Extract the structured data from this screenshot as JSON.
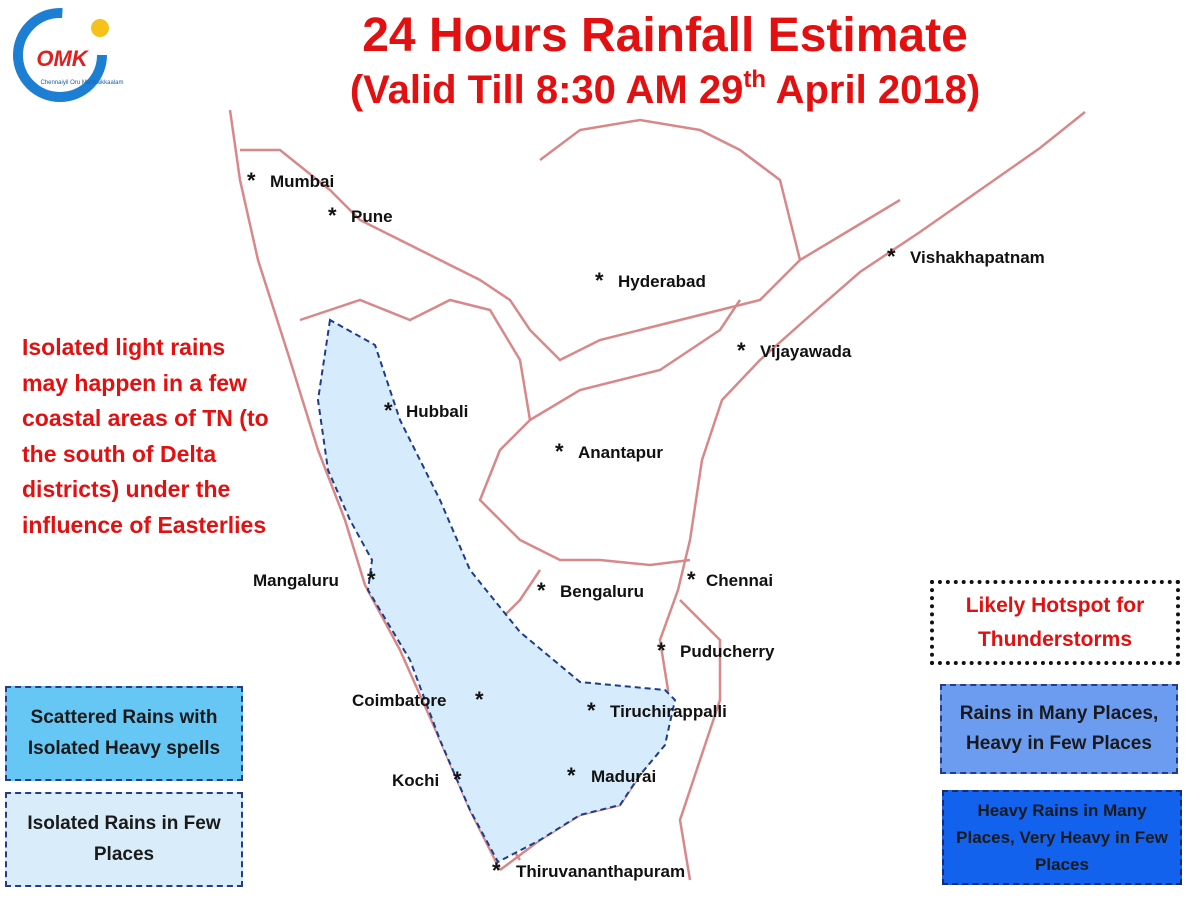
{
  "logo": {
    "text": "OMK",
    "caption": "Chennaiyil Oru Mazhaikkaalam"
  },
  "title": "24 Hours Rainfall Estimate",
  "subtitle": {
    "prefix": "(Valid Till 8:30 AM 29",
    "superscript": "th",
    "suffix": " April 2018)"
  },
  "note": "Isolated light rains may happen in a few coastal areas of TN (to the south of Delta districts) under the influence of Easterlies",
  "city_marker": "*",
  "cities": [
    {
      "label": "Mumbai"
    },
    {
      "label": "Pune"
    },
    {
      "label": "Hyderabad"
    },
    {
      "label": "Vishakhapatnam"
    },
    {
      "label": "Vijayawada"
    },
    {
      "label": "Hubbali"
    },
    {
      "label": "Anantapur"
    },
    {
      "label": "Mangaluru"
    },
    {
      "label": "Bengaluru"
    },
    {
      "label": "Chennai"
    },
    {
      "label": "Puducherry"
    },
    {
      "label": "Coimbatore"
    },
    {
      "label": "Tiruchirappalli"
    },
    {
      "label": "Kochi"
    },
    {
      "label": "Madurai"
    },
    {
      "label": "Thiruvananthapuram"
    }
  ],
  "legend": [
    {
      "label": "Scattered Rains with Isolated Heavy spells",
      "color": "#66c6f4"
    },
    {
      "label": "Isolated Rains in Few Places",
      "color": "#d8ecfa"
    },
    {
      "label": "Likely Hotspot for Thunderstorms",
      "color": "#ffffff"
    },
    {
      "label": "Rains in Many Places, Heavy in Few Places",
      "color": "#6c9cf0"
    },
    {
      "label": "Heavy Rains in Many Places, Very Heavy in Few Places",
      "color": "#1262ee"
    }
  ]
}
